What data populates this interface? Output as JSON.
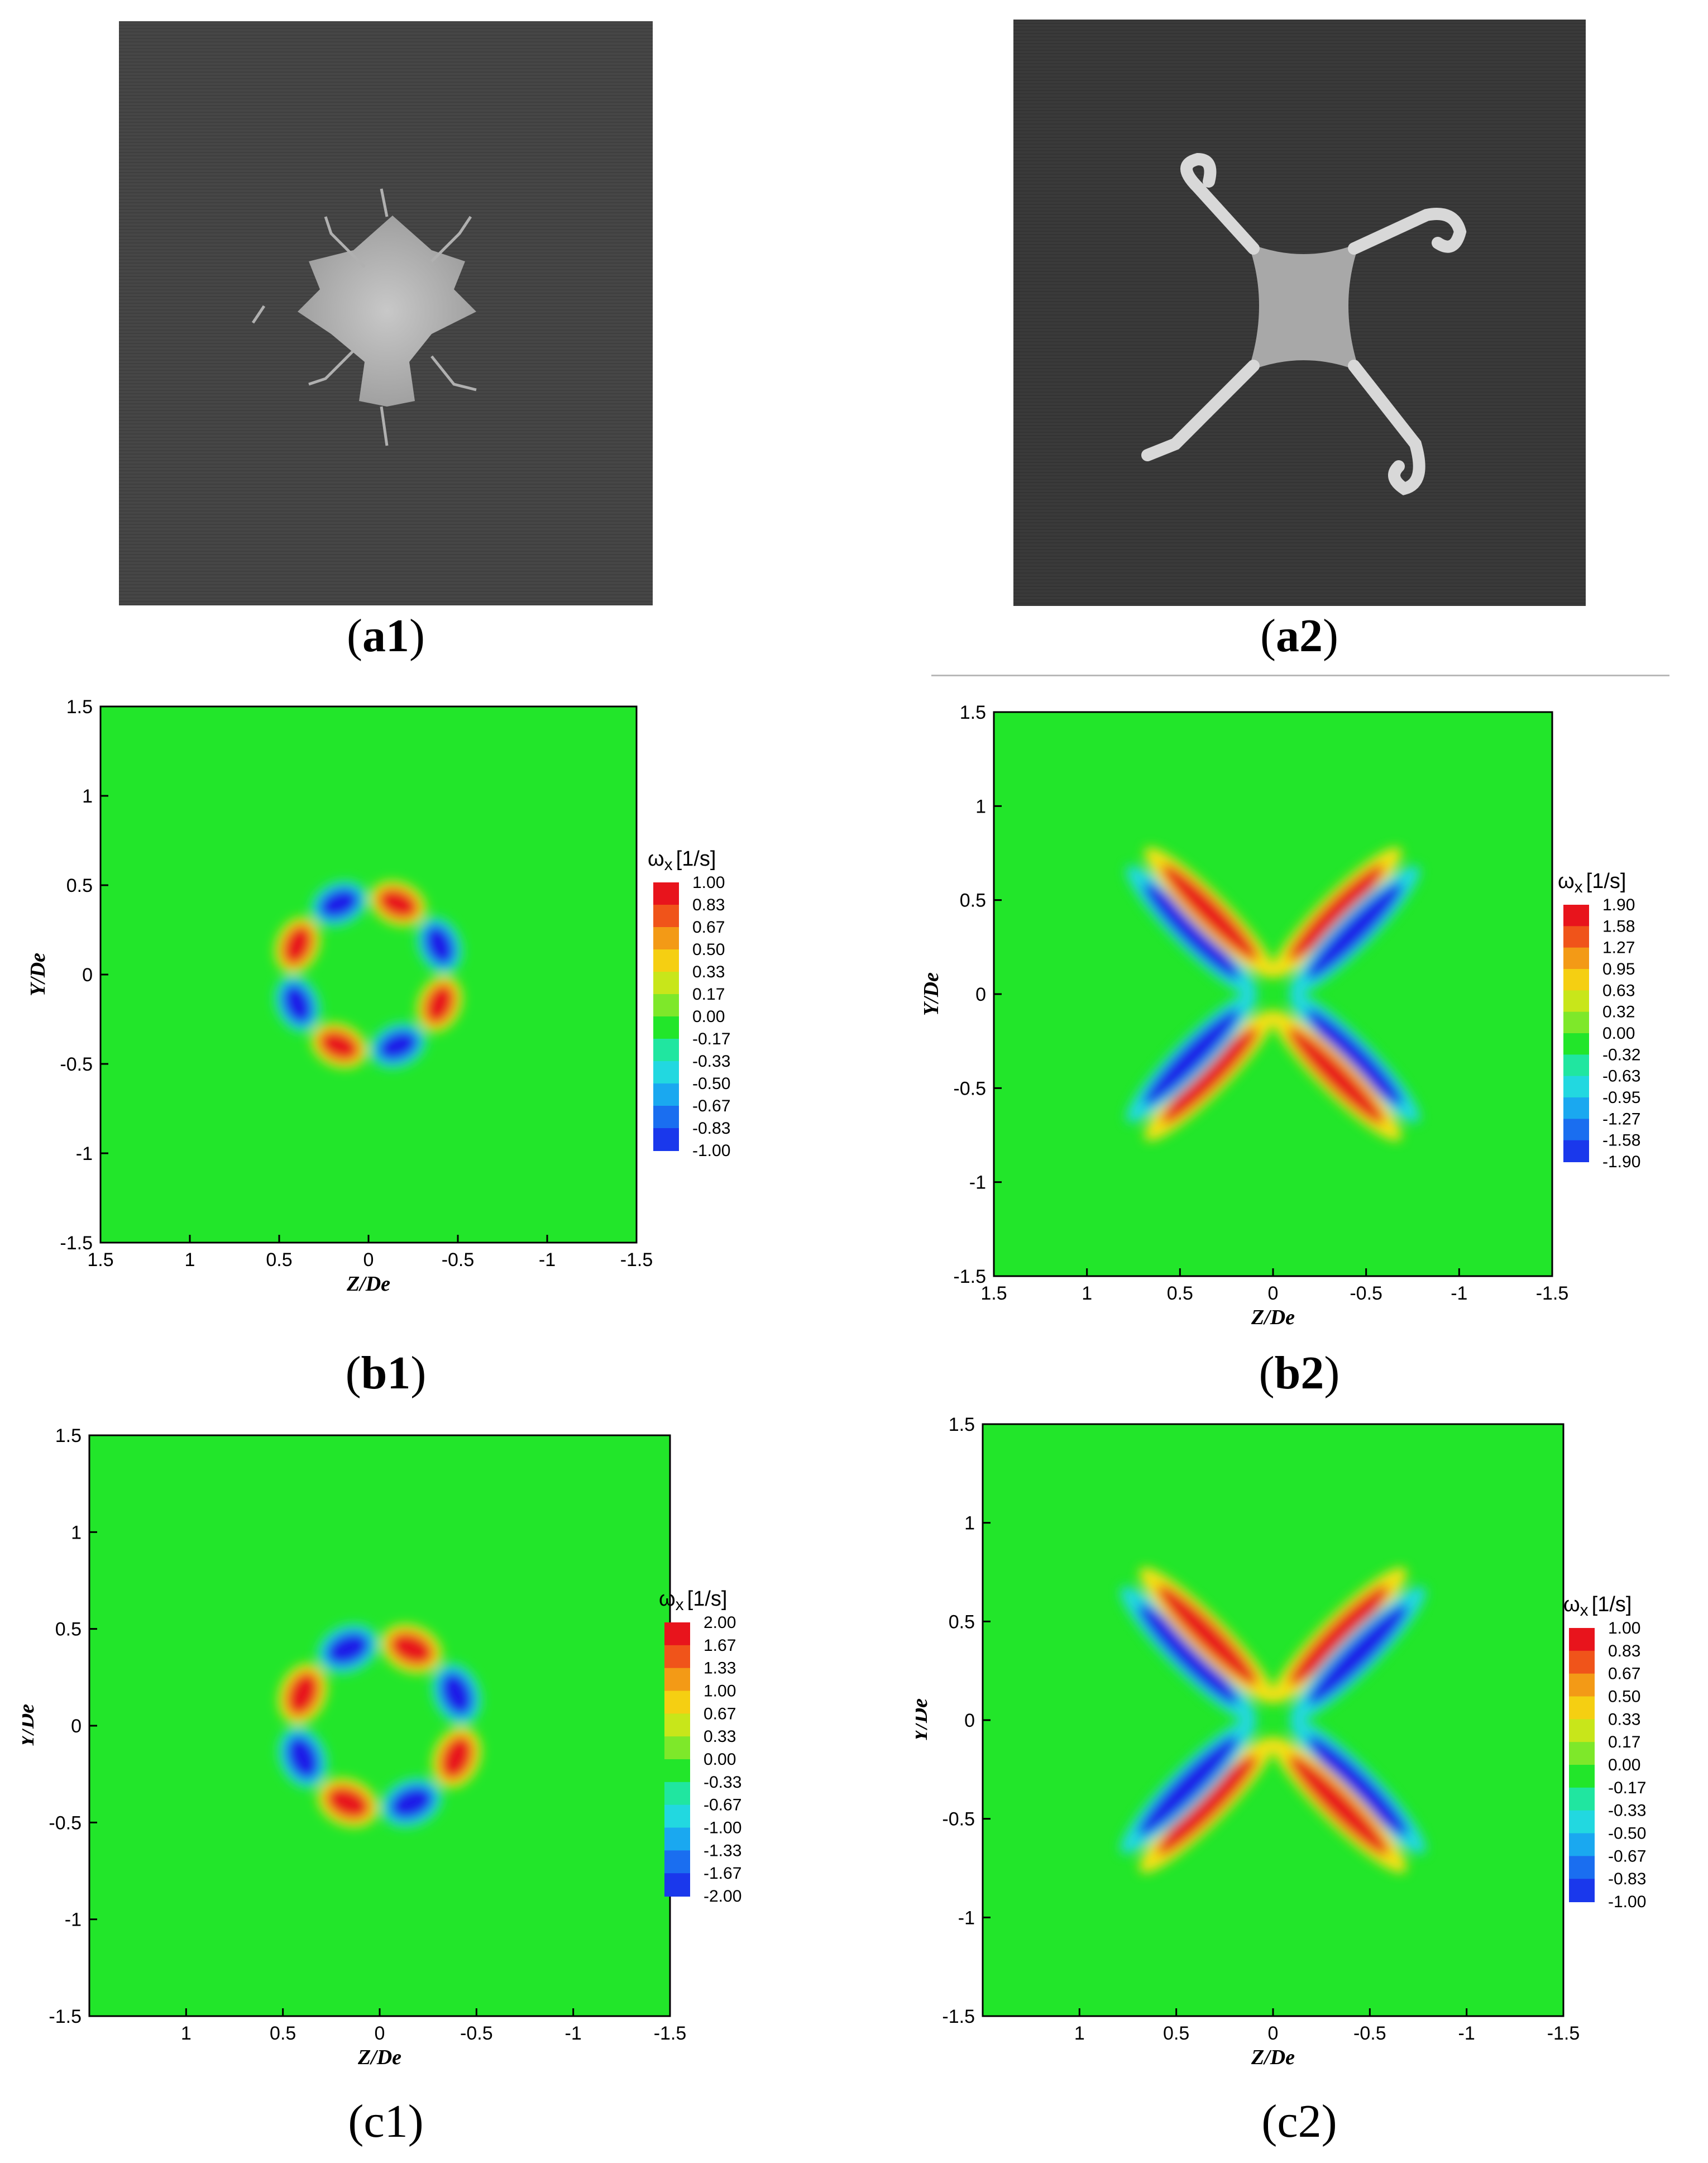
{
  "captions": {
    "a1": {
      "letter": "a",
      "num": "1"
    },
    "a2": {
      "letter": "a",
      "num": "2"
    },
    "b1": {
      "letter": "b",
      "num": "1"
    },
    "b2": {
      "letter": "b",
      "num": "2"
    },
    "c1": {
      "letter": "c",
      "num": "1"
    },
    "c2": {
      "letter": "c",
      "num": "2"
    }
  },
  "chart_data": [
    {
      "id": "b1",
      "type": "heatmap",
      "xlabel": "Z/De",
      "ylabel": "Y/De",
      "xticks": [
        "1.5",
        "1",
        "0.5",
        "0",
        "-0.5",
        "-1",
        "-1.5"
      ],
      "yticks": [
        "1.5",
        "1",
        "0.5",
        "0",
        "-0.5",
        "-1",
        "-1.5"
      ],
      "xlim": [
        1.5,
        -1.5
      ],
      "ylim": [
        -1.5,
        1.5
      ],
      "colorbar": {
        "symbol": "ω",
        "sub": "x",
        "unit": "[1/s]",
        "levels": [
          "1.00",
          "0.83",
          "0.67",
          "0.50",
          "0.33",
          "0.17",
          "0.00",
          "-0.17",
          "-0.33",
          "-0.50",
          "-0.67",
          "-0.83",
          "-1.00"
        ]
      },
      "pattern": "octo"
    },
    {
      "id": "b2",
      "type": "heatmap",
      "xlabel": "Z/De",
      "ylabel": "Y/De",
      "xticks": [
        "1.5",
        "1",
        "0.5",
        "0",
        "-0.5",
        "-1",
        "-1.5"
      ],
      "yticks": [
        "1.5",
        "1",
        "0.5",
        "0",
        "-0.5",
        "-1",
        "-1.5"
      ],
      "xlim": [
        1.5,
        -1.5
      ],
      "ylim": [
        -1.5,
        1.5
      ],
      "colorbar": {
        "symbol": "ω",
        "sub": "x",
        "unit": "[1/s]",
        "levels": [
          "1.90",
          "1.58",
          "1.27",
          "0.95",
          "0.63",
          "0.32",
          "0.00",
          "-0.32",
          "-0.63",
          "-0.95",
          "-1.27",
          "-1.58",
          "-1.90"
        ]
      },
      "pattern": "x"
    },
    {
      "id": "c1",
      "type": "heatmap",
      "xlabel": "Z/De",
      "ylabel": "Y/De",
      "xticks": [
        "1",
        "0.5",
        "0",
        "-0.5",
        "-1",
        "-1.5"
      ],
      "yticks": [
        "1.5",
        "1",
        "0.5",
        "0",
        "-0.5",
        "-1",
        "-1.5"
      ],
      "xlim": [
        1.5,
        -1.5
      ],
      "ylim": [
        -1.5,
        1.5
      ],
      "colorbar": {
        "symbol": "ω",
        "sub": "x",
        "unit": "[1/s]",
        "levels": [
          "2.00",
          "1.67",
          "1.33",
          "1.00",
          "0.67",
          "0.33",
          "0.00",
          "-0.33",
          "-0.67",
          "-1.00",
          "-1.33",
          "-1.67",
          "-2.00"
        ]
      },
      "pattern": "octo"
    },
    {
      "id": "c2",
      "type": "heatmap",
      "xlabel": "Z/De",
      "ylabel": "Y/De",
      "xticks": [
        "1",
        "0.5",
        "0",
        "-0.5",
        "-1",
        "-1.5"
      ],
      "yticks": [
        "1.5",
        "1",
        "0.5",
        "0",
        "-0.5",
        "-1",
        "-1.5"
      ],
      "xlim": [
        1.5,
        -1.5
      ],
      "ylim": [
        -1.5,
        1.5
      ],
      "colorbar": {
        "symbol": "ω",
        "sub": "x",
        "unit": "[1/s]",
        "levels": [
          "1.00",
          "0.83",
          "0.67",
          "0.50",
          "0.33",
          "0.17",
          "0.00",
          "-0.17",
          "-0.33",
          "-0.50",
          "-0.67",
          "-0.83",
          "-1.00"
        ]
      },
      "pattern": "x"
    }
  ],
  "colors": {
    "positive": "#e8141c",
    "negative": "#1a1ae8",
    "neutral": "#22e62a"
  }
}
